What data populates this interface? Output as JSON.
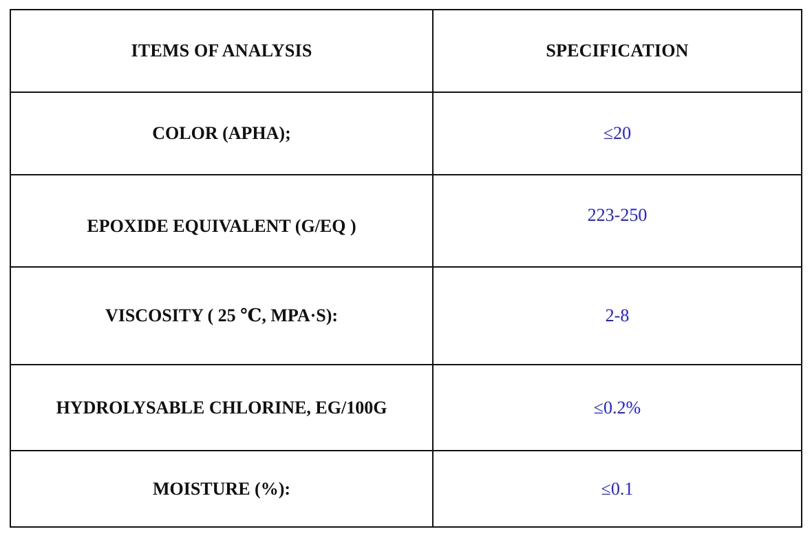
{
  "table": {
    "headers": {
      "items": "ITEMS OF ANALYSIS",
      "specification": "SPECIFICATION"
    },
    "rows": [
      {
        "item": "COLOR (APHA);",
        "spec": "≤20"
      },
      {
        "item": "EPOXIDE EQUIVALENT (G/EQ )",
        "spec": "223-250"
      },
      {
        "item": "VISCOSITY ( 25  ℃, MPA·S):",
        "spec": "2-8"
      },
      {
        "item": "HYDROLYSABLE CHLORINE, EG/100G",
        "spec": "≤0.2%"
      },
      {
        "item": "MOISTURE (%):",
        "spec": "≤0.1"
      }
    ]
  },
  "colors": {
    "border": "#111111",
    "header_text": "#111111",
    "item_text": "#111111",
    "spec_text": "#2020e8"
  }
}
